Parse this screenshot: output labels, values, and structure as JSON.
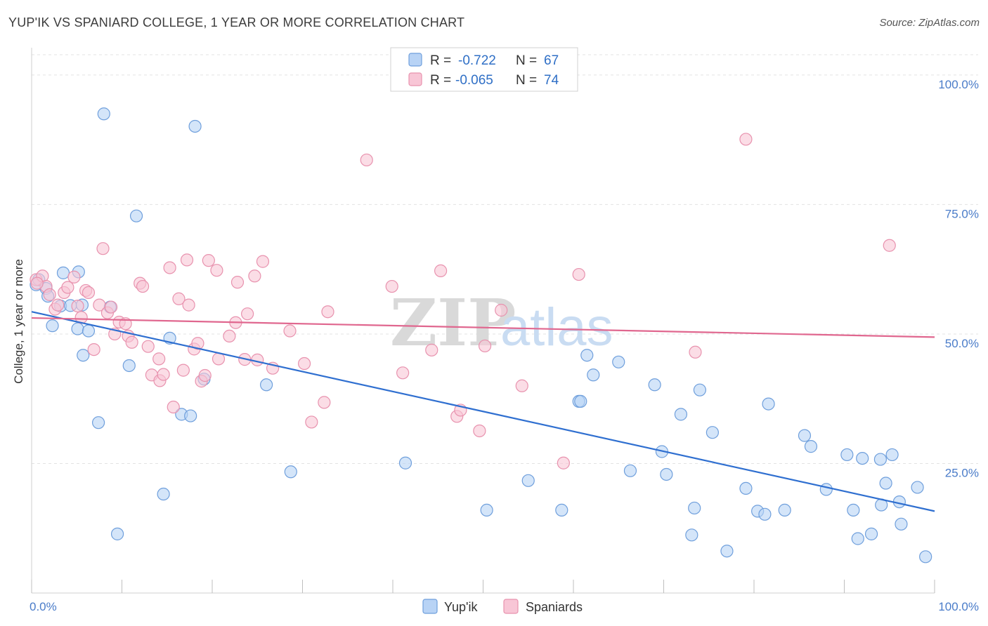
{
  "title": "YUP'IK VS SPANIARD COLLEGE, 1 YEAR OR MORE CORRELATION CHART",
  "source": "Source: ZipAtlas.com",
  "colors": {
    "yupik_fill": "#b8d3f5",
    "yupik_stroke": "#6f9fdc",
    "yupik_line": "#2f6fd0",
    "spaniard_fill": "#f8c6d6",
    "spaniard_stroke": "#e892ae",
    "spaniard_line": "#e0678f",
    "grid": "#e3e3e3",
    "tick_label": "#4a7cc9"
  },
  "legend": {
    "rows": [
      {
        "r_label": "R =",
        "r_value": "-0.722",
        "n_label": "N =",
        "n_value": "67"
      },
      {
        "r_label": "R =",
        "r_value": "-0.065",
        "n_label": "N =",
        "n_value": "74"
      }
    ]
  },
  "chart_data": {
    "type": "scatter",
    "title": "YUP'IK VS SPANIARD COLLEGE, 1 YEAR OR MORE CORRELATION CHART",
    "xlabel": "",
    "ylabel": "College, 1 year or more",
    "xlim": [
      0,
      100
    ],
    "ylim": [
      0,
      105
    ],
    "x_tick_labels": [
      "0.0%",
      "100.0%"
    ],
    "y_tick_labels": [
      "25.0%",
      "50.0%",
      "75.0%",
      "100.0%"
    ],
    "y_ticks": [
      25,
      50,
      75,
      100
    ],
    "grid": true,
    "legend_placement": "bottom-center",
    "series": [
      {
        "name": "Yup'ik",
        "r": -0.722,
        "n": 67,
        "trend": {
          "x": [
            0,
            100
          ],
          "y": [
            54.3,
            15.8
          ]
        },
        "points": [
          [
            0.5,
            59.5
          ],
          [
            0.8,
            60.5
          ],
          [
            1.6,
            58.8
          ],
          [
            1.8,
            57.3
          ],
          [
            2.3,
            51.6
          ],
          [
            3.2,
            55.4
          ],
          [
            3.5,
            61.8
          ],
          [
            4.3,
            55.5
          ],
          [
            5.1,
            51.0
          ],
          [
            5.2,
            62.0
          ],
          [
            5.6,
            55.6
          ],
          [
            5.7,
            45.9
          ],
          [
            6.3,
            50.6
          ],
          [
            7.4,
            32.9
          ],
          [
            8.0,
            92.5
          ],
          [
            8.7,
            55.2
          ],
          [
            9.5,
            11.4
          ],
          [
            10.8,
            43.9
          ],
          [
            11.6,
            72.8
          ],
          [
            14.6,
            19.1
          ],
          [
            15.3,
            49.2
          ],
          [
            16.6,
            34.5
          ],
          [
            17.6,
            34.2
          ],
          [
            18.1,
            90.1
          ],
          [
            19.1,
            41.3
          ],
          [
            26.0,
            40.2
          ],
          [
            28.7,
            23.4
          ],
          [
            41.4,
            25.1
          ],
          [
            50.4,
            16.0
          ],
          [
            55.0,
            21.7
          ],
          [
            58.7,
            16.0
          ],
          [
            60.6,
            37.0
          ],
          [
            60.8,
            37.0
          ],
          [
            61.5,
            45.9
          ],
          [
            62.2,
            42.1
          ],
          [
            65.0,
            44.6
          ],
          [
            66.3,
            23.6
          ],
          [
            69.0,
            40.2
          ],
          [
            69.8,
            27.3
          ],
          [
            70.3,
            22.9
          ],
          [
            71.9,
            34.5
          ],
          [
            73.1,
            11.2
          ],
          [
            73.4,
            16.4
          ],
          [
            74.0,
            39.2
          ],
          [
            75.4,
            31.0
          ],
          [
            77.0,
            8.1
          ],
          [
            79.1,
            20.2
          ],
          [
            80.4,
            15.8
          ],
          [
            81.2,
            15.2
          ],
          [
            81.6,
            36.5
          ],
          [
            83.4,
            16.0
          ],
          [
            85.6,
            30.4
          ],
          [
            86.3,
            28.3
          ],
          [
            88.0,
            20.0
          ],
          [
            90.3,
            26.7
          ],
          [
            91.0,
            16.0
          ],
          [
            91.5,
            10.5
          ],
          [
            92.0,
            26.0
          ],
          [
            93.0,
            11.4
          ],
          [
            94.0,
            25.8
          ],
          [
            94.1,
            17.0
          ],
          [
            94.6,
            21.2
          ],
          [
            95.3,
            26.7
          ],
          [
            96.1,
            17.6
          ],
          [
            96.3,
            13.3
          ],
          [
            98.1,
            20.4
          ],
          [
            99.0,
            7.0
          ]
        ]
      },
      {
        "name": "Spaniards",
        "r": -0.065,
        "n": 74,
        "trend": {
          "x": [
            0,
            100
          ],
          "y": [
            53.1,
            49.4
          ]
        },
        "points": [
          [
            0.5,
            60.5
          ],
          [
            1.2,
            61.2
          ],
          [
            1.6,
            59.2
          ],
          [
            2.0,
            57.6
          ],
          [
            2.6,
            54.8
          ],
          [
            2.9,
            55.6
          ],
          [
            3.6,
            58.0
          ],
          [
            4.0,
            59.0
          ],
          [
            4.7,
            61.0
          ],
          [
            5.1,
            55.4
          ],
          [
            5.5,
            53.2
          ],
          [
            6.0,
            58.4
          ],
          [
            6.3,
            58.0
          ],
          [
            6.9,
            47.0
          ],
          [
            7.5,
            55.6
          ],
          [
            7.9,
            66.5
          ],
          [
            8.4,
            54.1
          ],
          [
            8.8,
            55.2
          ],
          [
            9.2,
            50.0
          ],
          [
            9.7,
            52.3
          ],
          [
            10.4,
            52.0
          ],
          [
            10.7,
            49.6
          ],
          [
            11.1,
            48.4
          ],
          [
            12.0,
            59.8
          ],
          [
            12.3,
            59.2
          ],
          [
            12.9,
            47.6
          ],
          [
            13.3,
            42.1
          ],
          [
            14.1,
            45.2
          ],
          [
            14.2,
            41.0
          ],
          [
            14.6,
            42.2
          ],
          [
            15.3,
            62.8
          ],
          [
            15.7,
            35.9
          ],
          [
            16.3,
            56.8
          ],
          [
            16.8,
            43.0
          ],
          [
            17.2,
            64.3
          ],
          [
            17.4,
            55.6
          ],
          [
            18.0,
            47.1
          ],
          [
            18.4,
            48.2
          ],
          [
            18.8,
            40.9
          ],
          [
            19.2,
            42.0
          ],
          [
            19.6,
            64.2
          ],
          [
            20.5,
            62.3
          ],
          [
            20.7,
            45.2
          ],
          [
            21.9,
            49.6
          ],
          [
            22.6,
            52.2
          ],
          [
            22.8,
            60.0
          ],
          [
            23.6,
            45.1
          ],
          [
            23.9,
            53.9
          ],
          [
            24.7,
            61.2
          ],
          [
            25.0,
            45.0
          ],
          [
            25.6,
            64.0
          ],
          [
            26.7,
            43.4
          ],
          [
            28.6,
            50.6
          ],
          [
            30.2,
            44.3
          ],
          [
            31.0,
            33.0
          ],
          [
            32.4,
            36.8
          ],
          [
            32.8,
            54.3
          ],
          [
            37.1,
            83.6
          ],
          [
            39.9,
            59.2
          ],
          [
            41.1,
            42.5
          ],
          [
            44.3,
            46.9
          ],
          [
            45.3,
            62.2
          ],
          [
            47.1,
            34.1
          ],
          [
            47.5,
            35.3
          ],
          [
            49.6,
            31.3
          ],
          [
            50.2,
            47.7
          ],
          [
            52.0,
            54.6
          ],
          [
            54.3,
            40.0
          ],
          [
            58.9,
            25.1
          ],
          [
            60.6,
            61.5
          ],
          [
            73.5,
            46.5
          ],
          [
            79.1,
            87.6
          ],
          [
            95.0,
            67.1
          ],
          [
            0.6,
            59.8
          ]
        ]
      }
    ]
  },
  "bottom_legend": {
    "items": [
      {
        "label": "Yup'ik"
      },
      {
        "label": "Spaniards"
      }
    ]
  },
  "watermark": {
    "zip": "ZIP",
    "atlas": "atlas"
  }
}
